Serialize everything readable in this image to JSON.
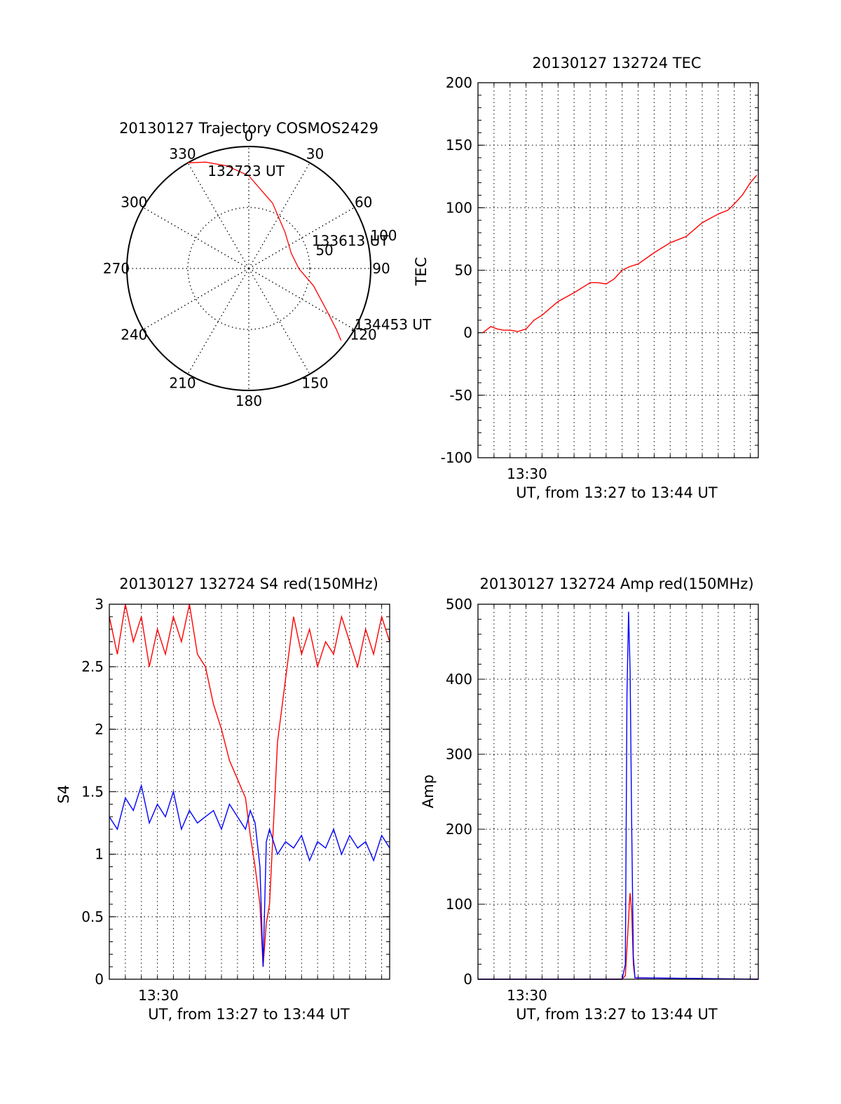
{
  "chart_data": [
    {
      "type": "polar",
      "title": "20130127 Trajectory COSMOS2429",
      "angle_labels": [
        "0",
        "30",
        "60",
        "90",
        "120",
        "150",
        "180",
        "210",
        "240",
        "270",
        "300",
        "330"
      ],
      "angle_values": [
        0,
        30,
        60,
        90,
        120,
        150,
        180,
        210,
        240,
        270,
        300,
        330
      ],
      "radial_ticks": [
        {
          "label": "50",
          "value": 50
        },
        {
          "label": "100",
          "value": 100
        }
      ],
      "radial_max": 100,
      "series": [
        {
          "color": "#ff0000",
          "azimuth": [
            330,
            338,
            348,
            0,
            20,
            45,
            70,
            90,
            105,
            118,
            125,
            128
          ],
          "radius": [
            100,
            94,
            86,
            76,
            57,
            42,
            37,
            41,
            55,
            72,
            88,
            96
          ]
        }
      ],
      "annotations": [
        {
          "text": "132723 UT",
          "azimuth": 336,
          "radius": 83
        },
        {
          "text": "133613 UT",
          "azimuth": 70,
          "radius": 55
        },
        {
          "text": "134453 UT",
          "azimuth": 120,
          "radius": 100
        }
      ]
    },
    {
      "type": "line",
      "title": "20130127 132724 TEC",
      "ylabel": "TEC",
      "xlabel": "UT, from 13:27 to 13:44 UT",
      "x_tick_label": "13:30",
      "x_tick_value": 3.0,
      "xlim": [
        0,
        17.5
      ],
      "ylim": [
        -100,
        200
      ],
      "y_ticks": [
        -100,
        -50,
        0,
        50,
        100,
        150,
        200
      ],
      "grid": true,
      "series": [
        {
          "color": "#ff0000",
          "x": [
            0.3,
            0.8,
            1.2,
            1.6,
            2.0,
            2.5,
            3.0,
            3.5,
            4.0,
            5.0,
            6.0,
            7.0,
            7.5,
            8.0,
            8.5,
            9.0,
            9.5,
            10.0,
            11.0,
            12.0,
            13.0,
            14.0,
            15.0,
            15.6,
            16.0,
            16.5,
            17.0,
            17.4
          ],
          "y": [
            0,
            5,
            3,
            2,
            2,
            1,
            3,
            10,
            14,
            25,
            32,
            40,
            40,
            39,
            43,
            50,
            53,
            55,
            64,
            72,
            77,
            88,
            95,
            98,
            103,
            110,
            120,
            126
          ]
        }
      ]
    },
    {
      "type": "line",
      "title": "20130127 132724 S4 red(150MHz)",
      "ylabel": "S4",
      "xlabel": "UT, from 13:27 to 13:44 UT",
      "x_tick_label": "13:30",
      "x_tick_value": 3.0,
      "xlim": [
        0,
        17.5
      ],
      "ylim": [
        0,
        3
      ],
      "y_ticks": [
        0,
        0.5,
        1,
        1.5,
        2,
        2.5,
        3
      ],
      "grid": true,
      "series": [
        {
          "color": "#ff0000",
          "x": [
            0.0,
            0.5,
            1.0,
            1.5,
            2.0,
            2.5,
            3.0,
            3.5,
            4.0,
            4.5,
            5.0,
            5.5,
            6.0,
            6.5,
            7.0,
            7.5,
            8.0,
            8.5,
            8.8,
            9.1,
            9.4,
            9.6,
            9.8,
            10.0,
            10.5,
            11.0,
            11.5,
            12.0,
            12.5,
            13.0,
            13.5,
            14.0,
            14.5,
            15.0,
            15.5,
            16.0,
            16.5,
            17.0,
            17.5
          ],
          "y": [
            2.9,
            2.6,
            3.0,
            2.7,
            2.9,
            2.5,
            2.8,
            2.6,
            2.9,
            2.7,
            3.0,
            2.6,
            2.5,
            2.2,
            2.0,
            1.75,
            1.6,
            1.45,
            1.15,
            0.9,
            0.6,
            0.1,
            0.45,
            0.6,
            1.9,
            2.4,
            2.9,
            2.6,
            2.8,
            2.5,
            2.7,
            2.6,
            2.9,
            2.7,
            2.5,
            2.8,
            2.6,
            2.9,
            2.7
          ]
        },
        {
          "color": "#0000ff",
          "x": [
            0.0,
            0.5,
            1.0,
            1.5,
            2.0,
            2.5,
            3.0,
            3.5,
            4.0,
            4.5,
            5.0,
            5.5,
            6.0,
            6.5,
            7.0,
            7.5,
            8.0,
            8.5,
            8.8,
            9.1,
            9.4,
            9.6,
            9.8,
            10.0,
            10.5,
            11.0,
            11.5,
            12.0,
            12.5,
            13.0,
            13.5,
            14.0,
            14.5,
            15.0,
            15.5,
            16.0,
            16.5,
            17.0,
            17.5
          ],
          "y": [
            1.3,
            1.2,
            1.45,
            1.35,
            1.55,
            1.25,
            1.4,
            1.3,
            1.5,
            1.2,
            1.35,
            1.25,
            1.3,
            1.35,
            1.2,
            1.4,
            1.3,
            1.2,
            1.35,
            1.25,
            0.9,
            0.1,
            1.1,
            1.2,
            1.0,
            1.1,
            1.05,
            1.15,
            0.95,
            1.1,
            1.05,
            1.2,
            1.0,
            1.15,
            1.05,
            1.1,
            0.95,
            1.15,
            1.05
          ]
        }
      ]
    },
    {
      "type": "line",
      "title": "20130127 132724 Amp red(150MHz)",
      "ylabel": "Amp",
      "xlabel": "UT, from 13:27 to 13:44 UT",
      "x_tick_label": "13:30",
      "x_tick_value": 3.0,
      "xlim": [
        0,
        17.5
      ],
      "ylim": [
        0,
        500
      ],
      "y_ticks": [
        0,
        100,
        200,
        300,
        400,
        500
      ],
      "grid": true,
      "series": [
        {
          "color": "#ff0000",
          "x": [
            0,
            9.0,
            9.2,
            9.35,
            9.45,
            9.5,
            9.6,
            9.7,
            9.8,
            17.5
          ],
          "y": [
            0,
            0,
            5,
            60,
            100,
            115,
            90,
            20,
            2,
            0
          ]
        },
        {
          "color": "#0000ff",
          "x": [
            0,
            9.0,
            9.2,
            9.3,
            9.4,
            9.5,
            9.6,
            9.7,
            9.8,
            17.5
          ],
          "y": [
            0,
            0,
            20,
            380,
            490,
            410,
            200,
            30,
            2,
            0
          ]
        }
      ]
    }
  ]
}
